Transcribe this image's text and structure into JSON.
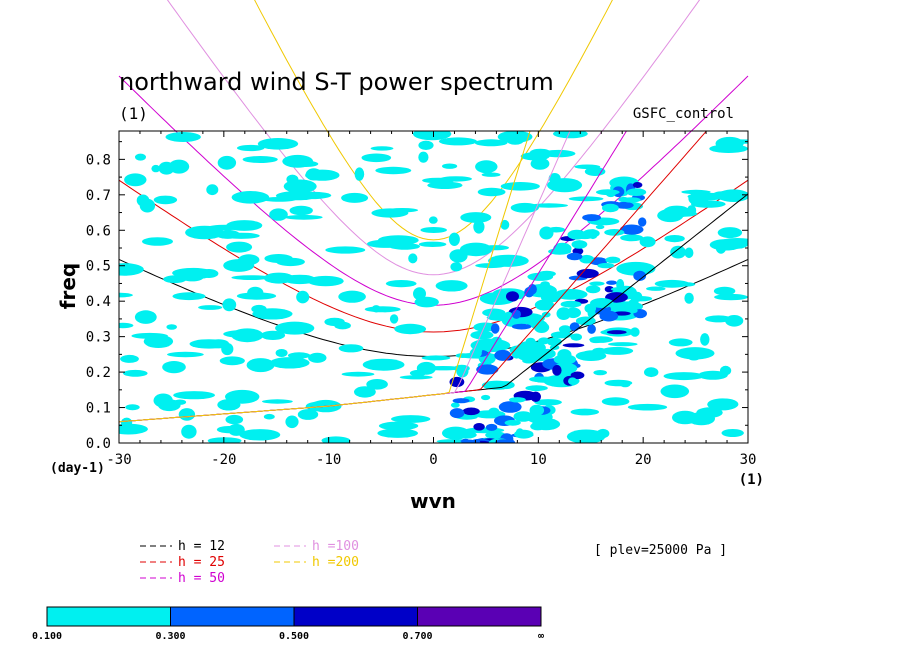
{
  "chart_data": {
    "type": "heatmap",
    "title": "northward wind S-T power spectrum",
    "subtitle_left": "(1)",
    "subtitle_right": "GSFC_control",
    "xlabel": "wvn",
    "ylabel": "freq",
    "x_unit": "(1)",
    "y_unit": "(day-1)",
    "xlim": [
      -30,
      30
    ],
    "ylim": [
      0.0,
      0.88
    ],
    "xticks": [
      "-30",
      "-20",
      "-10",
      "0",
      "10",
      "20",
      "30"
    ],
    "yticks": [
      "0.0",
      "0.1",
      "0.2",
      "0.3",
      "0.4",
      "0.5",
      "0.6",
      "0.7",
      "0.8"
    ],
    "level_text": "[ plev=25000 Pa ]",
    "legend": {
      "position": "bottom-left",
      "entries": [
        {
          "label": "h = 12",
          "color": "#000000"
        },
        {
          "label": "h = 25",
          "color": "#e00000"
        },
        {
          "label": "h = 50",
          "color": "#d000d0"
        },
        {
          "label": "h =100",
          "color": "#e090e0"
        },
        {
          "label": "h =200",
          "color": "#f0c800"
        }
      ]
    },
    "colorbar": {
      "labels": [
        "0.100",
        "0.300",
        "0.500",
        "0.700",
        "∞"
      ],
      "colors": [
        "#00f0f0",
        "#0064ff",
        "#0000c8",
        "#5a00b4"
      ]
    },
    "curves": {
      "equivalent_depths_m": [
        12,
        25,
        50,
        100,
        200
      ],
      "colors": [
        "#000000",
        "#e00000",
        "#d000d0",
        "#e090e0",
        "#f0c800"
      ]
    }
  }
}
